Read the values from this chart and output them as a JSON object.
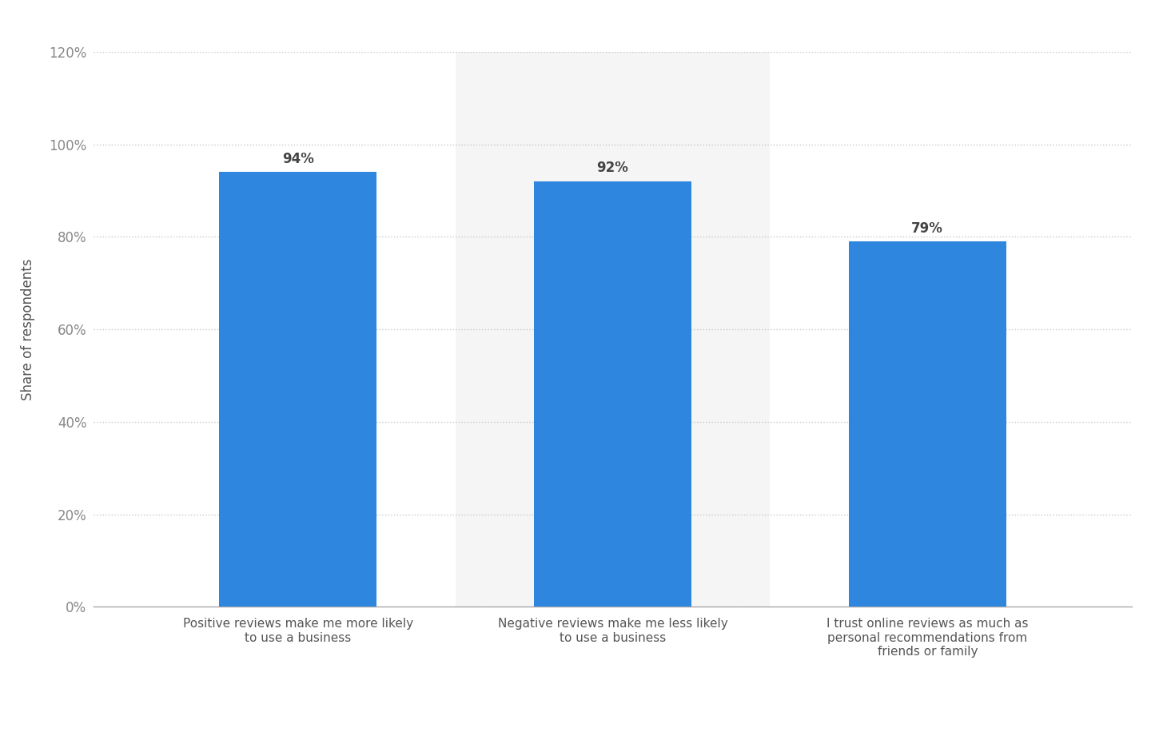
{
  "categories": [
    "Positive reviews make me more likely\nto use a business",
    "Negative reviews make me less likely\nto use a business",
    "I trust online reviews as much as\npersonal recommendations from\nfriends or family"
  ],
  "values": [
    0.94,
    0.92,
    0.79
  ],
  "labels": [
    "94%",
    "92%",
    "79%"
  ],
  "bar_color": "#2e86de",
  "background_color": "#ffffff",
  "highlight_bg_color": "#f5f5f5",
  "highlight_bar_index": 1,
  "ylabel": "Share of respondents",
  "ylim": [
    0,
    1.2
  ],
  "yticks": [
    0.0,
    0.2,
    0.4,
    0.6,
    0.8,
    1.0,
    1.2
  ],
  "yticklabels": [
    "0%",
    "20%",
    "40%",
    "60%",
    "80%",
    "100%",
    "120%"
  ],
  "grid_color": "#c8c8c8",
  "grid_linestyle": "dotted",
  "ylabel_fontsize": 12,
  "ytick_fontsize": 12,
  "xtick_fontsize": 11,
  "bar_label_fontsize": 12,
  "bar_width": 0.5
}
